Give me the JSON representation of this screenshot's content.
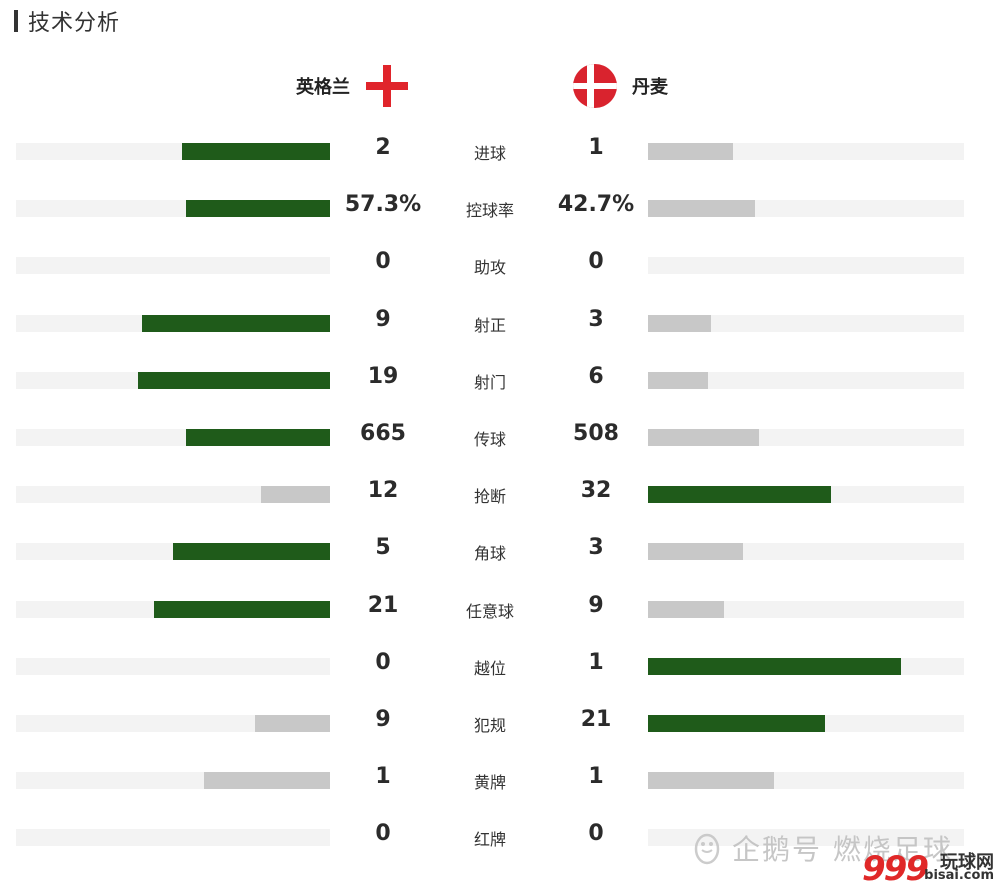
{
  "section": {
    "title": "技术分析"
  },
  "teams": {
    "home": {
      "name": "英格兰",
      "flag_icon": "england-flag-icon",
      "flag_colors": {
        "field": "#ffffff",
        "cross": "#e0242b"
      }
    },
    "away": {
      "name": "丹麦",
      "flag_icon": "denmark-flag-icon",
      "flag_colors": {
        "field": "#d9232e",
        "cross": "#ffffff"
      }
    }
  },
  "colors": {
    "lead": "#1f5b1a",
    "trail": "#c8c8c8",
    "track": "#f3f3f3"
  },
  "stats": [
    {
      "label": "进球",
      "home": "2",
      "away": "1",
      "home_fill": 0.47,
      "away_fill": 0.27,
      "leader": "home"
    },
    {
      "label": "控球率",
      "home": "57.3%",
      "away": "42.7%",
      "home_fill": 0.46,
      "away_fill": 0.34,
      "leader": "home"
    },
    {
      "label": "助攻",
      "home": "0",
      "away": "0",
      "home_fill": 0,
      "away_fill": 0,
      "leader": "none"
    },
    {
      "label": "射正",
      "home": "9",
      "away": "3",
      "home_fill": 0.6,
      "away_fill": 0.2,
      "leader": "home"
    },
    {
      "label": "射门",
      "home": "19",
      "away": "6",
      "home_fill": 0.61,
      "away_fill": 0.19,
      "leader": "home"
    },
    {
      "label": "传球",
      "home": "665",
      "away": "508",
      "home_fill": 0.46,
      "away_fill": 0.35,
      "leader": "home"
    },
    {
      "label": "抢断",
      "home": "12",
      "away": "32",
      "home_fill": 0.22,
      "away_fill": 0.58,
      "leader": "away"
    },
    {
      "label": "角球",
      "home": "5",
      "away": "3",
      "home_fill": 0.5,
      "away_fill": 0.3,
      "leader": "home"
    },
    {
      "label": "任意球",
      "home": "21",
      "away": "9",
      "home_fill": 0.56,
      "away_fill": 0.24,
      "leader": "home"
    },
    {
      "label": "越位",
      "home": "0",
      "away": "1",
      "home_fill": 0,
      "away_fill": 0.8,
      "leader": "away"
    },
    {
      "label": "犯规",
      "home": "9",
      "away": "21",
      "home_fill": 0.24,
      "away_fill": 0.56,
      "leader": "away"
    },
    {
      "label": "黄牌",
      "home": "1",
      "away": "1",
      "home_fill": 0.4,
      "away_fill": 0.4,
      "leader": "none"
    },
    {
      "label": "红牌",
      "home": "0",
      "away": "0",
      "home_fill": 0,
      "away_fill": 0,
      "leader": "none"
    }
  ],
  "watermark": {
    "text": "企鹅号 燃烧足球",
    "icon": "penguin-icon"
  },
  "site_mark": {
    "logo": "999",
    "name": "玩球网",
    "domain": "bisai.com"
  }
}
